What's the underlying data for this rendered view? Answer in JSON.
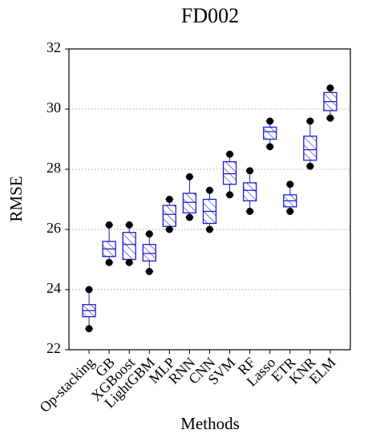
{
  "chart_data": {
    "type": "box",
    "title": "FD002",
    "x_label": "Methods",
    "y_label": "RMSE",
    "categories": [
      "Op-stacking",
      "GB",
      "XGBoost",
      "LightGBM",
      "MLP",
      "RNN",
      "CNN",
      "SVM",
      "RF",
      "Lasso",
      "ETR",
      "KNR",
      "ELM"
    ],
    "min": [
      22.7,
      24.9,
      24.9,
      24.6,
      26.0,
      26.4,
      26.0,
      27.15,
      26.6,
      28.75,
      26.6,
      28.1,
      29.7
    ],
    "q1": [
      23.1,
      25.1,
      25.0,
      24.95,
      26.1,
      26.55,
      26.2,
      27.5,
      26.95,
      29.0,
      26.75,
      28.3,
      29.95
    ],
    "median": [
      23.3,
      25.35,
      25.5,
      25.2,
      26.5,
      26.9,
      26.6,
      27.85,
      27.3,
      29.25,
      26.95,
      28.65,
      30.25
    ],
    "q3": [
      23.5,
      25.6,
      25.9,
      25.5,
      26.8,
      27.2,
      27.0,
      28.25,
      27.55,
      29.4,
      27.15,
      29.1,
      30.55
    ],
    "max": [
      24.0,
      26.15,
      26.15,
      25.85,
      27.0,
      27.75,
      27.3,
      28.5,
      27.95,
      29.6,
      27.5,
      29.6,
      30.7
    ],
    "color": "#1c1cd0",
    "point_color": "#000000",
    "ylim": [
      22,
      32
    ],
    "yticks": [
      22,
      24,
      26,
      28,
      30,
      32
    ],
    "grid": true
  }
}
